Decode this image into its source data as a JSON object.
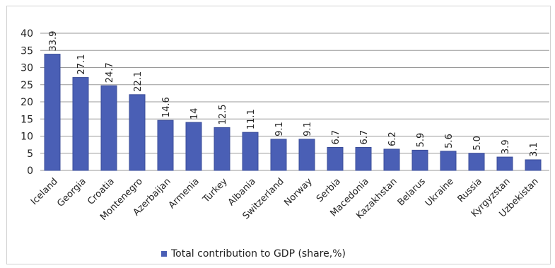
{
  "chart_data": {
    "type": "bar",
    "categories": [
      "Iceland",
      "Georgia",
      "Croatia",
      "Montenegro",
      "Azerbaijan",
      "Armenia",
      "Turkey",
      "Albania",
      "Switzerland",
      "Norway",
      "Serbia",
      "Macedonia",
      "Kazakhstan",
      "Belarus",
      "Ukraine",
      "Russia",
      "Kyrgyzstan",
      "Uzbekistan"
    ],
    "values": [
      33.9,
      27.1,
      24.7,
      22.1,
      14.6,
      14,
      12.5,
      11.1,
      9.1,
      9.1,
      6.7,
      6.7,
      6.2,
      5.9,
      5.6,
      5.0,
      3.9,
      3.1
    ],
    "data_labels": [
      "33.9",
      "27.1",
      "24.7",
      "22.1",
      "14.6",
      "14",
      "12.5",
      "11.1",
      "9.1",
      "9.1",
      "6.7",
      "6.7",
      "6.2",
      "5.9",
      "5.6",
      "5.0",
      "3.9",
      "3.1"
    ],
    "series": [
      {
        "name": "Total contribution to GDP (share,%)"
      }
    ],
    "ylim": [
      0,
      40
    ],
    "yticks": [
      "0",
      "5",
      "10",
      "15",
      "20",
      "25",
      "30",
      "35",
      "40"
    ],
    "grid": true,
    "legend_position": "bottom",
    "colors": {
      "bar": "#4a5fb5",
      "bar_edge": "#3b4d99",
      "grid": "#9a9a9a"
    }
  }
}
